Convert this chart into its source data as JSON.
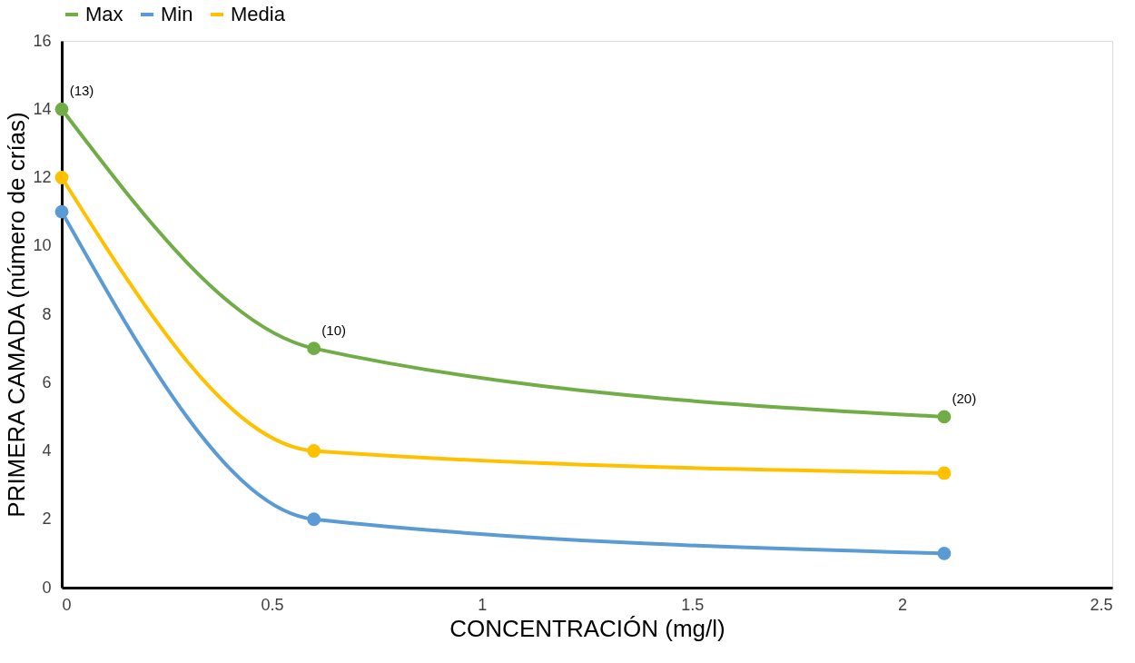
{
  "chart_data": {
    "type": "line",
    "xlabel": "CONCENTRACIÓN (mg/l)",
    "ylabel": "PRIMERA CAMADA (número de crías)",
    "x": [
      0,
      0.6,
      2.1
    ],
    "series": [
      {
        "name": "Max",
        "color": "#70ad47",
        "values": [
          14,
          7,
          5
        ]
      },
      {
        "name": "Min",
        "color": "#5b9bd5",
        "values": [
          11,
          2,
          1
        ]
      },
      {
        "name": "Media",
        "color": "#ffc000",
        "values": [
          12,
          4,
          3.35
        ]
      }
    ],
    "annotations": [
      {
        "text": "(13)",
        "x": 0,
        "y": 14
      },
      {
        "text": "(10)",
        "x": 0.6,
        "y": 7
      },
      {
        "text": "(20)",
        "x": 2.1,
        "y": 5
      }
    ],
    "xlim": [
      0,
      2.5
    ],
    "xticks": [
      0,
      0.5,
      1,
      1.5,
      2,
      2.5
    ],
    "ylim": [
      0,
      16
    ],
    "yticks": [
      0,
      2,
      4,
      6,
      8,
      10,
      12,
      14,
      16
    ],
    "grid": false,
    "legend": "top",
    "marker": "circle",
    "line_style": "solid"
  }
}
